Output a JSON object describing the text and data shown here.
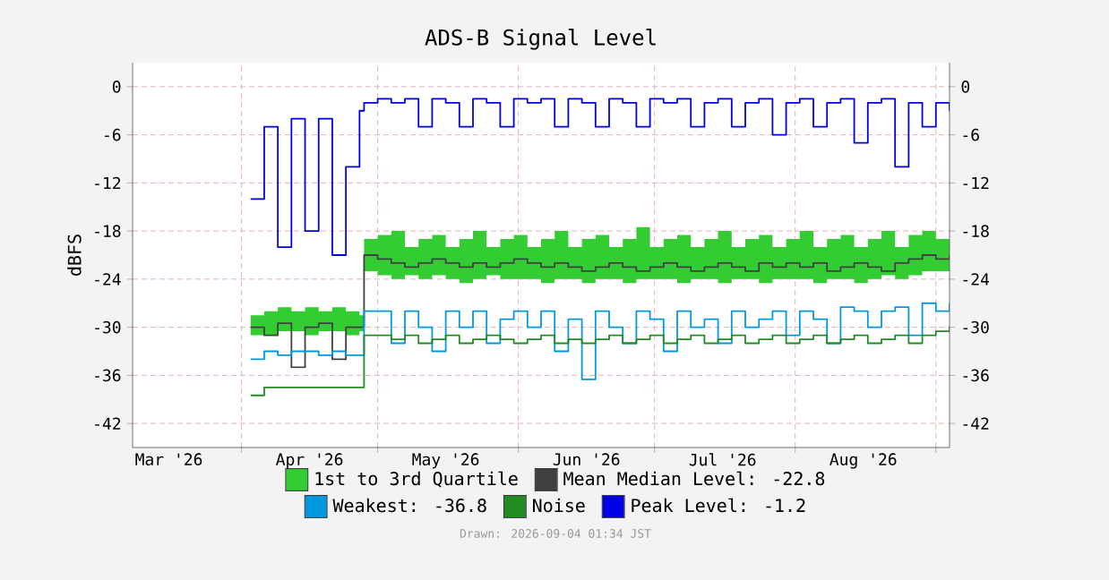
{
  "chart_data": {
    "type": "step",
    "title": "ADS-B Signal Level",
    "ylabel": "dBFS",
    "annotations": [
      "Drawn: 2026-09-04 01:34 JST"
    ],
    "x": [
      "2026-04-03",
      "2026-04-06",
      "2026-04-09",
      "2026-04-12",
      "2026-04-15",
      "2026-04-18",
      "2026-04-21",
      "2026-04-24",
      "2026-04-27",
      "2026-04-28",
      "2026-05-01",
      "2026-05-04",
      "2026-05-07",
      "2026-05-10",
      "2026-05-13",
      "2026-05-16",
      "2026-05-19",
      "2026-05-22",
      "2026-05-25",
      "2026-05-28",
      "2026-05-31",
      "2026-06-03",
      "2026-06-06",
      "2026-06-09",
      "2026-06-12",
      "2026-06-15",
      "2026-06-18",
      "2026-06-21",
      "2026-06-24",
      "2026-06-27",
      "2026-06-30",
      "2026-07-03",
      "2026-07-06",
      "2026-07-09",
      "2026-07-12",
      "2026-07-15",
      "2026-07-18",
      "2026-07-21",
      "2026-07-24",
      "2026-07-27",
      "2026-07-30",
      "2026-08-02",
      "2026-08-05",
      "2026-08-08",
      "2026-08-11",
      "2026-08-14",
      "2026-08-17",
      "2026-08-20",
      "2026-08-23",
      "2026-08-26",
      "2026-08-29",
      "2026-09-01",
      "2026-09-04"
    ],
    "series": [
      {
        "name": "1st to 3rd Quartile",
        "type": "area",
        "color": "#33cc33",
        "values": [
          null,
          null,
          null,
          null,
          null,
          null,
          null,
          null,
          null,
          null,
          null,
          null,
          null,
          null,
          null,
          null,
          null,
          null,
          null,
          null,
          null,
          null,
          null,
          null,
          null,
          null,
          null,
          null,
          null,
          null,
          null,
          null,
          null,
          null,
          null,
          null,
          null,
          null,
          null,
          null,
          null,
          null,
          null,
          null,
          null,
          null,
          null,
          null,
          null,
          null,
          null,
          null,
          null
        ]
      },
      {
        "name": "Mean Median Level:   -22.8",
        "color": "#404040",
        "values": [
          -30,
          -31,
          -29.5,
          -35,
          -30,
          -29.5,
          -34,
          -30,
          -30,
          -21,
          -21.5,
          -22,
          -22.5,
          -22,
          -21.5,
          -22,
          -22.5,
          -22,
          -22.5,
          -22,
          -21.5,
          -22,
          -22.5,
          -22,
          -22.5,
          -23,
          -22.5,
          -22,
          -22.5,
          -23,
          -22.5,
          -22,
          -22.5,
          -23,
          -22.5,
          -22,
          -22.5,
          -23,
          -22,
          -22.5,
          -22,
          -22.5,
          -22,
          -23,
          -22.5,
          -22,
          -22.5,
          -23,
          -22,
          -21.5,
          -21,
          -21.5,
          -21
        ],
        "lower": [
          -31,
          -31,
          -30.5,
          -30.5,
          -31,
          -30.5,
          -30.5,
          -31,
          -30.5,
          -23,
          -23.5,
          -24,
          -23.5,
          -24,
          -23.5,
          -24,
          -24.5,
          -24,
          -23.5,
          -24,
          -24,
          -24,
          -24.5,
          -24,
          -24,
          -24.5,
          -24,
          -24,
          -24.5,
          -24,
          -24,
          -24,
          -24.5,
          -24,
          -24,
          -24.5,
          -24,
          -24,
          -24.5,
          -24,
          -24,
          -24,
          -24.5,
          -24,
          -24,
          -24.5,
          -24,
          -23.5,
          -24,
          -23.5,
          -23,
          -23,
          -23
        ],
        "upper": [
          -28.5,
          -28,
          -27.5,
          -28,
          -27.5,
          -28,
          -27.5,
          -28,
          -28.5,
          -19,
          -18.5,
          -18,
          -20,
          -19,
          -18.5,
          -20,
          -19,
          -18,
          -20,
          -19,
          -18.5,
          -20,
          -19,
          -18,
          -20,
          -19,
          -18.5,
          -20,
          -19,
          -17.5,
          -20,
          -19,
          -18.5,
          -20,
          -19,
          -18,
          -20,
          -19,
          -18.5,
          -20,
          -19,
          -18,
          -20,
          -19,
          -18.5,
          -20,
          -19,
          -18,
          -20,
          -18.5,
          -18,
          -19,
          -18
        ]
      },
      {
        "name": "Weakest:  -36.8",
        "color": "#0099e0",
        "values": [
          -34,
          -33,
          -33.5,
          -33,
          -33,
          -33.5,
          -33,
          -33.5,
          -33.5,
          -28,
          -28,
          -32,
          -28,
          -30,
          -33,
          -28,
          -30,
          -28,
          -32,
          -29,
          -28,
          -30,
          -28,
          -33,
          -29,
          -36.5,
          -28,
          -30,
          -32,
          -28,
          -29,
          -33,
          -28,
          -30,
          -29,
          -32,
          -28,
          -30,
          -29,
          -28,
          -31,
          -28,
          -29,
          -32,
          -27.5,
          -28,
          -30,
          -28,
          -27.5,
          -31,
          -27,
          -28,
          -27
        ]
      },
      {
        "name": "Noise",
        "color": "#228b22",
        "values": [
          -38.5,
          -37.5,
          -37.5,
          -37.5,
          -37.5,
          -37.5,
          -37.5,
          -37.5,
          -37.5,
          -31,
          -31,
          -31.5,
          -31,
          -32,
          -31.5,
          -31,
          -32,
          -31.5,
          -31,
          -31.5,
          -32,
          -31.5,
          -31,
          -32,
          -31.5,
          -32,
          -31.5,
          -31,
          -32,
          -31.5,
          -31,
          -32,
          -31.5,
          -31,
          -32,
          -31.5,
          -31,
          -32,
          -31.5,
          -31,
          -32,
          -31.5,
          -31,
          -32,
          -31.5,
          -31,
          -32,
          -31.5,
          -31,
          -32,
          -31,
          -30.5,
          -30
        ]
      },
      {
        "name": "Peak Level:  -1.2",
        "color": "#0000e6",
        "values": [
          -14,
          -5,
          -20,
          -4,
          -18,
          -4,
          -21,
          -10,
          -3,
          -2,
          -1.5,
          -2,
          -1.5,
          -5,
          -1.5,
          -2,
          -5,
          -1.5,
          -2,
          -5,
          -1.5,
          -2,
          -1.5,
          -5,
          -1.5,
          -2,
          -5,
          -1.5,
          -2,
          -5,
          -1.5,
          -2,
          -1.5,
          -5,
          -2,
          -1.5,
          -5,
          -2,
          -1.5,
          -6,
          -2,
          -1.5,
          -5,
          -2,
          -1.5,
          -7,
          -2,
          -1.5,
          -10,
          -2,
          -5,
          -2,
          -3
        ]
      }
    ],
    "xlim": [
      "2026-03-08",
      "2026-09-04"
    ],
    "xticks": [
      {
        "value": "2026-03-16",
        "label": "Mar '26"
      },
      {
        "value": "2026-04-01",
        "label": null
      },
      {
        "value": "2026-04-16",
        "label": "Apr '26"
      },
      {
        "value": "2026-05-01",
        "label": null
      },
      {
        "value": "2026-05-16",
        "label": "May '26"
      },
      {
        "value": "2026-06-01",
        "label": null
      },
      {
        "value": "2026-06-16",
        "label": "Jun '26"
      },
      {
        "value": "2026-07-01",
        "label": null
      },
      {
        "value": "2026-07-16",
        "label": "Jul '26"
      },
      {
        "value": "2026-08-01",
        "label": null
      },
      {
        "value": "2026-08-16",
        "label": "Aug '26"
      },
      {
        "value": "2026-09-01",
        "label": null
      }
    ],
    "ylim": [
      -45,
      3
    ],
    "yticks": [
      -42,
      -36,
      -30,
      -24,
      -18,
      -12,
      -6,
      0
    ],
    "y2lim": [
      -45,
      3
    ],
    "y2ticks": [
      -42,
      -36,
      -30,
      -24,
      -18,
      -12,
      -6,
      0
    ],
    "grid": true,
    "legend": "bottom"
  }
}
